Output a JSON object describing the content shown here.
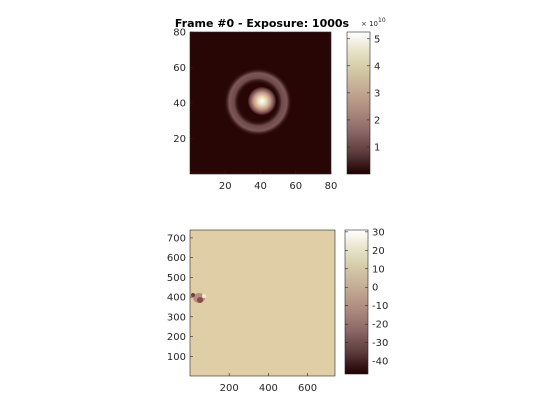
{
  "chart_data": [
    {
      "type": "heatmap",
      "title": "Frame #0 - Exposure: 1000s",
      "xlabel": "",
      "ylabel": "",
      "xlim": [
        0,
        80
      ],
      "ylim": [
        0,
        80
      ],
      "x_ticks": [
        "20",
        "40",
        "60",
        "80"
      ],
      "y_ticks": [
        "20",
        "40",
        "60",
        "80"
      ],
      "colormap": "pink",
      "image": {
        "background_level": 0.0,
        "peak_center": [
          38,
          40
        ],
        "peak_value": 5.2,
        "core_radius": 7,
        "ring_inner_radius": 10,
        "ring_outer_radius": 15,
        "ring_level": 0.7
      },
      "colorbar": {
        "range": [
          0,
          5.25
        ],
        "ticks": [
          "1",
          "2",
          "3",
          "4",
          "5"
        ],
        "tick_values": [
          1,
          2,
          3,
          4,
          5
        ],
        "exponent_label": "× 10",
        "exponent_power": "10"
      }
    },
    {
      "type": "heatmap",
      "title": "",
      "xlabel": "",
      "ylabel": "",
      "xlim": [
        0,
        740
      ],
      "ylim": [
        0,
        740
      ],
      "x_ticks": [
        "200",
        "400",
        "600"
      ],
      "y_ticks": [
        "100",
        "200",
        "300",
        "400",
        "500",
        "600",
        "700"
      ],
      "colormap": "pink",
      "image": {
        "background_value": 0,
        "feature_center": [
          55,
          380
        ],
        "feature_min": -45,
        "feature_max": 30
      },
      "colorbar": {
        "range": [
          -47,
          31
        ],
        "ticks": [
          "30",
          "20",
          "10",
          "0",
          "-10",
          "-20",
          "-30",
          "-40"
        ],
        "tick_values": [
          30,
          20,
          10,
          0,
          -10,
          -20,
          -30,
          -40
        ]
      }
    }
  ]
}
